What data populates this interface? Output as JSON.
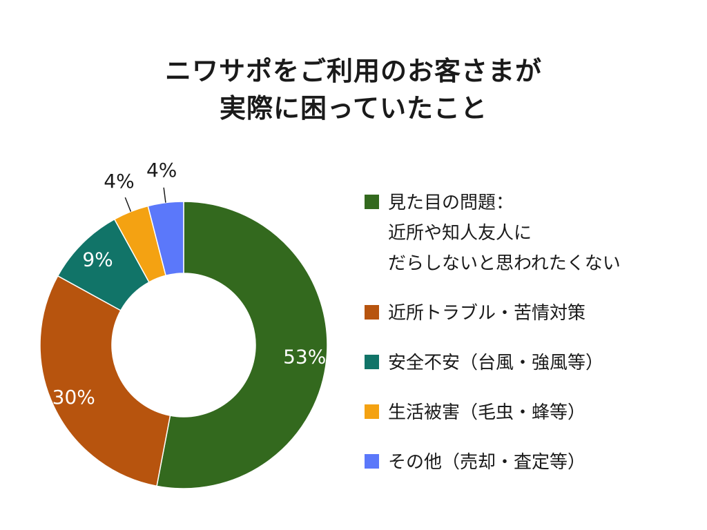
{
  "chart_data": {
    "type": "pie",
    "title_lines": [
      "ニワサポをご利用のお客さまが",
      "実際に困っていたこと"
    ],
    "slices": [
      {
        "label_lines": [
          "見た目の問題：",
          "近所や知人友人に",
          "だらしないと思われたくない"
        ],
        "value": 53,
        "label": "53%",
        "color": "#33691e",
        "label_color": "#ffffff"
      },
      {
        "label_lines": [
          "近所トラブル・苦情対策"
        ],
        "value": 30,
        "label": "30%",
        "color": "#b7540e",
        "label_color": "#ffffff"
      },
      {
        "label_lines": [
          "安全不安（台風・強風等）"
        ],
        "value": 9,
        "label": "9%",
        "color": "#117468",
        "label_color": "#ffffff"
      },
      {
        "label_lines": [
          "生活被害（毛虫・蜂等）"
        ],
        "value": 4,
        "label": "4%",
        "color": "#f4a212",
        "label_color": "#1a1a1a"
      },
      {
        "label_lines": [
          "その他（売却・査定等）"
        ],
        "value": 4,
        "label": "4%",
        "color": "#5b78fa",
        "label_color": "#1a1a1a"
      }
    ],
    "legend_position": "right",
    "inner_hole": true
  }
}
